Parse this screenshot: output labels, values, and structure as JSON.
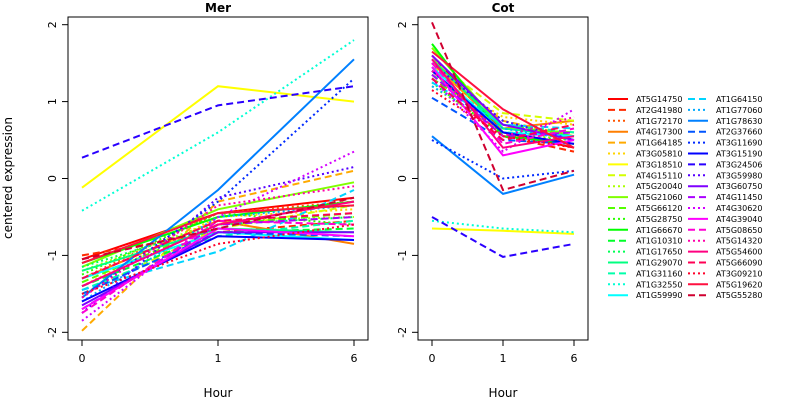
{
  "chart_data": {
    "type": "line",
    "ylabel": "centered expression",
    "xlabel": "Hour",
    "ylim": [
      -2.1,
      2.1
    ],
    "yticks": [
      -2,
      -1,
      0,
      1,
      2
    ],
    "x": [
      0,
      1,
      6
    ],
    "x_tick_labels": [
      "0",
      "1",
      "6"
    ],
    "grid": false,
    "legend_position": "right",
    "series_styles": [
      {
        "color": "#ff0000",
        "dash": "solid"
      },
      {
        "color": "#ff2a00",
        "dash": "longdash"
      },
      {
        "color": "#ff5500",
        "dash": "dotted"
      },
      {
        "color": "#ff7f00",
        "dash": "solid"
      },
      {
        "color": "#ffaa00",
        "dash": "longdash"
      },
      {
        "color": "#ffd400",
        "dash": "dotted"
      },
      {
        "color": "#ffff00",
        "dash": "solid"
      },
      {
        "color": "#d4ff00",
        "dash": "longdash"
      },
      {
        "color": "#aaff00",
        "dash": "dotted"
      },
      {
        "color": "#80ff00",
        "dash": "solid"
      },
      {
        "color": "#55ff00",
        "dash": "longdash"
      },
      {
        "color": "#2aff00",
        "dash": "dotted"
      },
      {
        "color": "#00ff00",
        "dash": "solid"
      },
      {
        "color": "#00ff2a",
        "dash": "longdash"
      },
      {
        "color": "#00ff55",
        "dash": "dotted"
      },
      {
        "color": "#00ff80",
        "dash": "solid"
      },
      {
        "color": "#00ffaa",
        "dash": "longdash"
      },
      {
        "color": "#00ffd4",
        "dash": "dotted"
      },
      {
        "color": "#00ffff",
        "dash": "solid"
      },
      {
        "color": "#00d4ff",
        "dash": "longdash"
      },
      {
        "color": "#00aaff",
        "dash": "dotted"
      },
      {
        "color": "#0080ff",
        "dash": "solid"
      },
      {
        "color": "#0055ff",
        "dash": "longdash"
      },
      {
        "color": "#002aff",
        "dash": "dotted"
      },
      {
        "color": "#0000ff",
        "dash": "solid"
      },
      {
        "color": "#2a00ff",
        "dash": "longdash"
      },
      {
        "color": "#5500ff",
        "dash": "dotted"
      },
      {
        "color": "#7f00ff",
        "dash": "solid"
      },
      {
        "color": "#aa00ff",
        "dash": "longdash"
      },
      {
        "color": "#d400ff",
        "dash": "dotted"
      },
      {
        "color": "#ff00ff",
        "dash": "solid"
      },
      {
        "color": "#ff00d4",
        "dash": "longdash"
      },
      {
        "color": "#ff00aa",
        "dash": "dotted"
      },
      {
        "color": "#ff0080",
        "dash": "solid"
      },
      {
        "color": "#ff0055",
        "dash": "longdash"
      },
      {
        "color": "#ff002a",
        "dash": "dotted"
      },
      {
        "color": "#ff1040",
        "dash": "solid"
      },
      {
        "color": "#d00030",
        "dash": "longdash"
      }
    ],
    "legend": [
      "AT5G14750",
      "AT2G41980",
      "AT1G72170",
      "AT4G17300",
      "AT1G64185",
      "AT3G05810",
      "AT3G18510",
      "AT4G15110",
      "AT5G20040",
      "AT5G21060",
      "AT5G66120",
      "AT5G28750",
      "AT1G66670",
      "AT1G10310",
      "AT1G17650",
      "AT1G29070",
      "AT1G31160",
      "AT1G32550",
      "AT1G59990",
      "AT1G64150",
      "AT1G77060",
      "AT1G78630",
      "AT2G37660",
      "AT3G11690",
      "AT3G15190",
      "AT3G24506",
      "AT3G59980",
      "AT3G60750",
      "AT4G11450",
      "AT4G30620",
      "AT4G39040",
      "AT5G08650",
      "AT5G14320",
      "AT5G54600",
      "AT5G66090",
      "AT3G09210",
      "AT5G19620",
      "AT5G55280"
    ],
    "panels": [
      {
        "title": "Mer",
        "series": [
          {
            "name": "AT5G14750",
            "values": [
              -1.05,
              -0.45,
              -0.25
            ]
          },
          {
            "name": "AT2G41980",
            "values": [
              -1.0,
              -0.7,
              -0.55
            ]
          },
          {
            "name": "AT1G72170",
            "values": [
              -1.3,
              -0.45,
              -0.3
            ]
          },
          {
            "name": "AT4G17300",
            "values": [
              -1.3,
              -0.55,
              -0.85
            ]
          },
          {
            "name": "AT1G64185",
            "values": [
              -1.98,
              -0.3,
              0.1
            ]
          },
          {
            "name": "AT3G05810",
            "values": [
              -1.4,
              -0.5,
              -0.4
            ]
          },
          {
            "name": "AT3G18510",
            "values": [
              -0.12,
              1.2,
              1.0
            ]
          },
          {
            "name": "AT4G15110",
            "values": [
              -1.5,
              -0.65,
              -0.35
            ]
          },
          {
            "name": "AT5G20040",
            "values": [
              -1.2,
              -0.55,
              -0.5
            ]
          },
          {
            "name": "AT5G21060",
            "values": [
              -1.15,
              -0.4,
              -0.05
            ]
          },
          {
            "name": "AT5G66120",
            "values": [
              -1.35,
              -0.6,
              -0.45
            ]
          },
          {
            "name": "AT5G28750",
            "values": [
              -1.25,
              -0.45,
              -0.6
            ]
          },
          {
            "name": "AT1G66670",
            "values": [
              -1.1,
              -0.5,
              -0.3
            ]
          },
          {
            "name": "AT1G10310",
            "values": [
              -1.4,
              -0.7,
              -0.65
            ]
          },
          {
            "name": "AT1G17650",
            "values": [
              -1.15,
              -0.6,
              -0.5
            ]
          },
          {
            "name": "AT1G29070",
            "values": [
              -1.2,
              -0.65,
              -0.7
            ]
          },
          {
            "name": "AT1G31160",
            "values": [
              -1.45,
              -0.75,
              -0.55
            ]
          },
          {
            "name": "AT1G32550",
            "values": [
              -0.42,
              0.6,
              1.8
            ]
          },
          {
            "name": "AT1G59990",
            "values": [
              -1.3,
              -0.7,
              -0.8
            ]
          },
          {
            "name": "AT1G64150",
            "values": [
              -1.45,
              -0.95,
              -0.15
            ]
          },
          {
            "name": "AT1G77060",
            "values": [
              -1.6,
              -0.5,
              -0.35
            ]
          },
          {
            "name": "AT1G78630",
            "values": [
              -1.55,
              -0.15,
              1.55
            ]
          },
          {
            "name": "AT2G37660",
            "values": [
              -1.5,
              -0.7,
              -0.75
            ]
          },
          {
            "name": "AT3G11690",
            "values": [
              -1.55,
              -0.3,
              1.3
            ]
          },
          {
            "name": "AT3G15190",
            "values": [
              -1.6,
              -0.75,
              -0.8
            ]
          },
          {
            "name": "AT3G24506",
            "values": [
              0.27,
              0.95,
              1.2
            ]
          },
          {
            "name": "AT3G59980",
            "values": [
              -1.75,
              -0.25,
              0.15
            ]
          },
          {
            "name": "AT3G60750",
            "values": [
              -1.65,
              -0.7,
              -0.7
            ]
          },
          {
            "name": "AT4G11450",
            "values": [
              -1.7,
              -0.6,
              -0.5
            ]
          },
          {
            "name": "AT4G30620",
            "values": [
              -1.85,
              -0.5,
              0.35
            ]
          },
          {
            "name": "AT4G39040",
            "values": [
              -1.7,
              -0.65,
              -0.75
            ]
          },
          {
            "name": "AT5G08650",
            "values": [
              -1.75,
              -0.55,
              -0.6
            ]
          },
          {
            "name": "AT5G14320",
            "values": [
              -1.55,
              -0.35,
              -0.1
            ]
          },
          {
            "name": "AT5G54600",
            "values": [
              -1.4,
              -0.6,
              -0.3
            ]
          },
          {
            "name": "AT5G66090",
            "values": [
              -1.3,
              -0.55,
              -0.45
            ]
          },
          {
            "name": "AT3G09210",
            "values": [
              -1.5,
              -0.85,
              -0.6
            ]
          },
          {
            "name": "AT5G19620",
            "values": [
              -1.1,
              -0.45,
              -0.35
            ]
          },
          {
            "name": "AT5G55280",
            "values": [
              -1.05,
              -0.65,
              -0.25
            ]
          }
        ]
      },
      {
        "title": "Cot",
        "series": [
          {
            "name": "AT5G14750",
            "values": [
              1.6,
              0.6,
              0.4
            ]
          },
          {
            "name": "AT2G41980",
            "values": [
              1.4,
              0.55,
              0.35
            ]
          },
          {
            "name": "AT1G72170",
            "values": [
              1.3,
              0.7,
              0.5
            ]
          },
          {
            "name": "AT4G17300",
            "values": [
              1.5,
              0.65,
              0.75
            ]
          },
          {
            "name": "AT1G64185",
            "values": [
              1.45,
              0.75,
              0.55
            ]
          },
          {
            "name": "AT3G05810",
            "values": [
              1.35,
              0.8,
              0.7
            ]
          },
          {
            "name": "AT3G18510",
            "values": [
              -0.65,
              -0.68,
              -0.72
            ]
          },
          {
            "name": "AT4G15110",
            "values": [
              1.55,
              0.85,
              0.75
            ]
          },
          {
            "name": "AT5G20040",
            "values": [
              1.2,
              0.6,
              0.5
            ]
          },
          {
            "name": "AT5G21060",
            "values": [
              1.7,
              0.65,
              0.6
            ]
          },
          {
            "name": "AT5G66120",
            "values": [
              1.3,
              0.7,
              0.55
            ]
          },
          {
            "name": "AT5G28750",
            "values": [
              1.25,
              0.55,
              0.5
            ]
          },
          {
            "name": "AT1G66670",
            "values": [
              1.75,
              0.55,
              0.45
            ]
          },
          {
            "name": "AT1G10310",
            "values": [
              1.4,
              0.6,
              0.55
            ]
          },
          {
            "name": "AT1G17650",
            "values": [
              1.5,
              0.75,
              0.5
            ]
          },
          {
            "name": "AT1G29070",
            "values": [
              1.55,
              0.65,
              0.55
            ]
          },
          {
            "name": "AT1G31160",
            "values": [
              1.35,
              0.7,
              0.6
            ]
          },
          {
            "name": "AT1G32550",
            "values": [
              -0.55,
              -0.65,
              -0.7
            ]
          },
          {
            "name": "AT1G59990",
            "values": [
              1.45,
              0.6,
              0.55
            ]
          },
          {
            "name": "AT1G64150",
            "values": [
              1.25,
              0.7,
              0.65
            ]
          },
          {
            "name": "AT1G77060",
            "values": [
              1.2,
              0.65,
              0.5
            ]
          },
          {
            "name": "AT1G78630",
            "values": [
              0.55,
              -0.2,
              0.05
            ]
          },
          {
            "name": "AT2G37660",
            "values": [
              1.05,
              0.5,
              0.45
            ]
          },
          {
            "name": "AT3G11690",
            "values": [
              0.5,
              0.0,
              0.1
            ]
          },
          {
            "name": "AT3G15190",
            "values": [
              1.4,
              0.6,
              0.45
            ]
          },
          {
            "name": "AT3G24506",
            "values": [
              -0.5,
              -1.02,
              -0.85
            ]
          },
          {
            "name": "AT3G59980",
            "values": [
              1.5,
              0.75,
              0.5
            ]
          },
          {
            "name": "AT3G60750",
            "values": [
              1.6,
              0.7,
              0.5
            ]
          },
          {
            "name": "AT4G11450",
            "values": [
              1.35,
              0.55,
              0.6
            ]
          },
          {
            "name": "AT4G30620",
            "values": [
              1.3,
              0.35,
              0.9
            ]
          },
          {
            "name": "AT4G39040",
            "values": [
              1.45,
              0.3,
              0.5
            ]
          },
          {
            "name": "AT5G08650",
            "values": [
              1.5,
              0.45,
              0.65
            ]
          },
          {
            "name": "AT5G14320",
            "values": [
              1.4,
              0.55,
              0.8
            ]
          },
          {
            "name": "AT5G54600",
            "values": [
              1.55,
              0.4,
              0.55
            ]
          },
          {
            "name": "AT5G66090",
            "values": [
              1.3,
              0.5,
              0.7
            ]
          },
          {
            "name": "AT3G09210",
            "values": [
              1.15,
              0.55,
              0.4
            ]
          },
          {
            "name": "AT5G19620",
            "values": [
              1.65,
              0.9,
              0.4
            ]
          },
          {
            "name": "AT5G55280",
            "values": [
              2.03,
              -0.15,
              0.1
            ]
          }
        ]
      }
    ]
  }
}
